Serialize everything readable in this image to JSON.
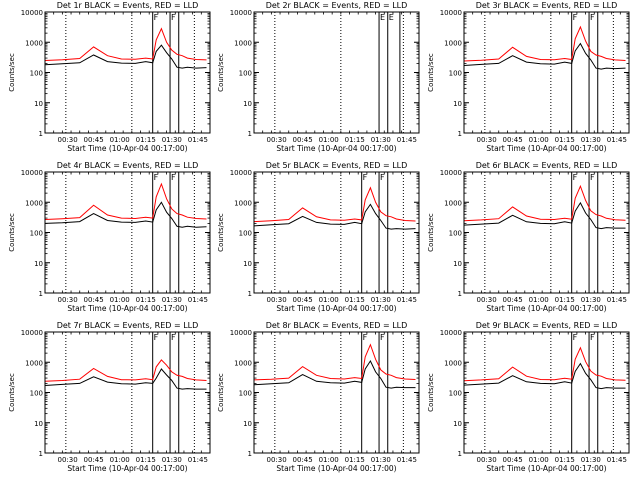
{
  "figure": {
    "x_tick_labels": [
      "00:30",
      "00:45",
      "01:00",
      "01:15",
      "01:30",
      "01:45"
    ],
    "y_tick_labels": [
      "1",
      "10",
      "100",
      "1000",
      "10000"
    ],
    "colors": {
      "events": "#000000",
      "lld": "#ff0000",
      "axes": "#000000"
    }
  },
  "chart_data": [
    {
      "type": "line",
      "title": "Det 1r BLACK = Events, RED = LLD",
      "xlabel": "Start Time (10-Apr-04 00:17:00)",
      "ylabel": "Counts/sec",
      "x_units": "minutes after 00:17:00",
      "xlim": [
        0,
        95
      ],
      "ylim": [
        1,
        10000
      ],
      "y_scale": "log",
      "x": [
        0,
        10,
        20,
        28,
        36,
        44,
        52,
        58,
        62,
        64,
        67,
        70,
        73,
        76,
        79,
        82,
        87,
        93
      ],
      "series": [
        {
          "name": "Events",
          "values": [
            180,
            195,
            210,
            380,
            230,
            205,
            200,
            230,
            210,
            500,
            800,
            450,
            280,
            150,
            140,
            150,
            140,
            145
          ]
        },
        {
          "name": "LLD",
          "values": [
            250,
            265,
            290,
            700,
            360,
            280,
            275,
            300,
            280,
            1200,
            2800,
            1000,
            550,
            400,
            360,
            300,
            270,
            260
          ]
        }
      ],
      "dotted_vlines": [
        12,
        50,
        86
      ],
      "solid_vlines": [
        62,
        72,
        77
      ],
      "legend_marks": [
        "F",
        "F"
      ]
    },
    {
      "type": "line",
      "title": "Det 2r BLACK = Events, RED = LLD",
      "xlabel": "Start Time (10-Apr-04 00:17:00)",
      "ylabel": "Counts/sec",
      "x_units": "minutes after 00:17:00",
      "xlim": [
        0,
        95
      ],
      "ylim": [
        1,
        10000
      ],
      "y_scale": "log",
      "x": [],
      "series": [],
      "dotted_vlines": [
        12,
        50,
        86
      ],
      "solid_vlines": [
        72,
        77,
        84
      ],
      "legend_marks": [
        "E",
        "E"
      ]
    },
    {
      "type": "line",
      "title": "Det 3r BLACK = Events, RED = LLD",
      "xlabel": "Start Time (10-Apr-04 00:17:00)",
      "ylabel": "Counts/sec",
      "x_units": "minutes after 00:17:00",
      "xlim": [
        0,
        95
      ],
      "ylim": [
        1,
        10000
      ],
      "y_scale": "log",
      "x": [
        0,
        10,
        20,
        28,
        36,
        44,
        52,
        58,
        62,
        64,
        67,
        70,
        73,
        76,
        79,
        82,
        87,
        93
      ],
      "series": [
        {
          "name": "Events",
          "values": [
            170,
            185,
            200,
            360,
            220,
            195,
            190,
            220,
            200,
            520,
            900,
            430,
            260,
            140,
            130,
            140,
            135,
            140
          ]
        },
        {
          "name": "LLD",
          "values": [
            240,
            255,
            280,
            680,
            340,
            270,
            265,
            290,
            270,
            1300,
            3200,
            1100,
            500,
            380,
            340,
            290,
            260,
            250
          ]
        }
      ],
      "dotted_vlines": [
        12,
        50,
        86
      ],
      "solid_vlines": [
        62,
        72,
        77
      ],
      "legend_marks": [
        "F",
        "F"
      ]
    },
    {
      "type": "line",
      "title": "Det 4r BLACK = Events, RED = LLD",
      "xlabel": "Start Time (10-Apr-04 00:17:00)",
      "ylabel": "Counts/sec",
      "x_units": "minutes after 00:17:00",
      "xlim": [
        0,
        95
      ],
      "ylim": [
        1,
        10000
      ],
      "y_scale": "log",
      "x": [
        0,
        10,
        20,
        28,
        36,
        44,
        52,
        58,
        62,
        64,
        67,
        70,
        73,
        76,
        79,
        82,
        87,
        93
      ],
      "series": [
        {
          "name": "Events",
          "values": [
            200,
            210,
            230,
            420,
            250,
            220,
            215,
            240,
            220,
            560,
            1000,
            470,
            290,
            160,
            150,
            160,
            150,
            155
          ]
        },
        {
          "name": "LLD",
          "values": [
            270,
            285,
            310,
            800,
            380,
            300,
            290,
            320,
            300,
            1500,
            4000,
            1300,
            600,
            420,
            380,
            320,
            290,
            280
          ]
        }
      ],
      "dotted_vlines": [
        12,
        50,
        86
      ],
      "solid_vlines": [
        62,
        72,
        77
      ],
      "legend_marks": [
        "F",
        "F"
      ]
    },
    {
      "type": "line",
      "title": "Det 5r BLACK = Events, RED = LLD",
      "xlabel": "Start Time (10-Apr-04 00:17:00)",
      "ylabel": "Counts/sec",
      "x_units": "minutes after 00:17:00",
      "xlim": [
        0,
        95
      ],
      "ylim": [
        1,
        10000
      ],
      "y_scale": "log",
      "x": [
        0,
        10,
        20,
        28,
        36,
        44,
        52,
        58,
        62,
        64,
        67,
        70,
        73,
        76,
        79,
        82,
        87,
        93
      ],
      "series": [
        {
          "name": "Events",
          "values": [
            165,
            180,
            195,
            340,
            215,
            190,
            185,
            215,
            195,
            480,
            850,
            420,
            250,
            140,
            130,
            135,
            130,
            135
          ]
        },
        {
          "name": "LLD",
          "values": [
            230,
            245,
            270,
            650,
            330,
            260,
            255,
            280,
            260,
            1200,
            3000,
            1000,
            480,
            360,
            330,
            280,
            250,
            240
          ]
        }
      ],
      "dotted_vlines": [
        12,
        50,
        86
      ],
      "solid_vlines": [
        62,
        72,
        77
      ],
      "legend_marks": [
        "F",
        "F"
      ]
    },
    {
      "type": "line",
      "title": "Det 6r BLACK = Events, RED = LLD",
      "xlabel": "Start Time (10-Apr-04 00:17:00)",
      "ylabel": "Counts/sec",
      "x_units": "minutes after 00:17:00",
      "xlim": [
        0,
        95
      ],
      "ylim": [
        1,
        10000
      ],
      "y_scale": "log",
      "x": [
        0,
        10,
        20,
        28,
        36,
        44,
        52,
        58,
        62,
        64,
        67,
        70,
        73,
        76,
        79,
        82,
        87,
        93
      ],
      "series": [
        {
          "name": "Events",
          "values": [
            175,
            190,
            205,
            370,
            225,
            200,
            195,
            225,
            205,
            510,
            950,
            440,
            270,
            145,
            135,
            145,
            140,
            140
          ]
        },
        {
          "name": "LLD",
          "values": [
            245,
            260,
            285,
            700,
            350,
            275,
            270,
            295,
            275,
            1350,
            3400,
            1150,
            520,
            390,
            350,
            295,
            265,
            255
          ]
        }
      ],
      "dotted_vlines": [
        12,
        50,
        86
      ],
      "solid_vlines": [
        62,
        72,
        77
      ],
      "legend_marks": [
        "F",
        "F"
      ]
    },
    {
      "type": "line",
      "title": "Det 7r BLACK = Events, RED = LLD",
      "xlabel": "Start Time (10-Apr-04 00:17:00)",
      "ylabel": "Counts/sec",
      "x_units": "minutes after 00:17:00",
      "xlim": [
        0,
        95
      ],
      "ylim": [
        1,
        10000
      ],
      "y_scale": "log",
      "x": [
        0,
        10,
        20,
        28,
        36,
        44,
        52,
        58,
        62,
        64,
        67,
        70,
        73,
        76,
        79,
        82,
        87,
        93
      ],
      "series": [
        {
          "name": "Events",
          "values": [
            170,
            185,
            200,
            330,
            220,
            195,
            190,
            210,
            200,
            300,
            600,
            380,
            250,
            140,
            130,
            135,
            130,
            130
          ]
        },
        {
          "name": "LLD",
          "values": [
            235,
            250,
            275,
            620,
            340,
            265,
            260,
            285,
            265,
            700,
            1200,
            800,
            480,
            370,
            340,
            290,
            260,
            250
          ]
        }
      ],
      "dotted_vlines": [
        12,
        50,
        86
      ],
      "solid_vlines": [
        62,
        72,
        77
      ],
      "legend_marks": [
        "F",
        "F"
      ]
    },
    {
      "type": "line",
      "title": "Det 8r BLACK = Events, RED = LLD",
      "xlabel": "Start Time (10-Apr-04 00:17:00)",
      "ylabel": "Counts/sec",
      "x_units": "minutes after 00:17:00",
      "xlim": [
        0,
        95
      ],
      "ylim": [
        1,
        10000
      ],
      "y_scale": "log",
      "x": [
        0,
        10,
        20,
        28,
        36,
        44,
        52,
        58,
        62,
        64,
        67,
        70,
        73,
        76,
        79,
        82,
        87,
        93
      ],
      "series": [
        {
          "name": "Events",
          "values": [
            180,
            195,
            210,
            390,
            235,
            210,
            205,
            235,
            215,
            600,
            1100,
            480,
            290,
            150,
            140,
            150,
            145,
            145
          ]
        },
        {
          "name": "LLD",
          "values": [
            260,
            275,
            300,
            720,
            370,
            290,
            280,
            310,
            290,
            1500,
            3800,
            1250,
            560,
            410,
            370,
            310,
            280,
            270
          ]
        }
      ],
      "dotted_vlines": [
        12,
        50,
        86
      ],
      "solid_vlines": [
        62,
        72,
        77
      ],
      "legend_marks": [
        "F",
        "F"
      ]
    },
    {
      "type": "line",
      "title": "Det 9r BLACK = Events, RED = LLD",
      "xlabel": "Start Time (10-Apr-04 00:17:00)",
      "ylabel": "Counts/sec",
      "x_units": "minutes after 00:17:00",
      "xlim": [
        0,
        95
      ],
      "ylim": [
        1,
        10000
      ],
      "y_scale": "log",
      "x": [
        0,
        10,
        20,
        28,
        36,
        44,
        52,
        58,
        62,
        64,
        67,
        70,
        73,
        76,
        79,
        82,
        87,
        93
      ],
      "series": [
        {
          "name": "Events",
          "values": [
            175,
            190,
            205,
            360,
            225,
            200,
            195,
            225,
            205,
            500,
            900,
            430,
            265,
            145,
            135,
            145,
            140,
            140
          ]
        },
        {
          "name": "LLD",
          "values": [
            245,
            260,
            285,
            690,
            345,
            270,
            265,
            295,
            275,
            1250,
            3000,
            1050,
            510,
            380,
            345,
            290,
            260,
            255
          ]
        }
      ],
      "dotted_vlines": [
        12,
        50,
        86
      ],
      "solid_vlines": [
        62,
        72,
        77
      ],
      "legend_marks": [
        "F",
        "F"
      ]
    }
  ]
}
